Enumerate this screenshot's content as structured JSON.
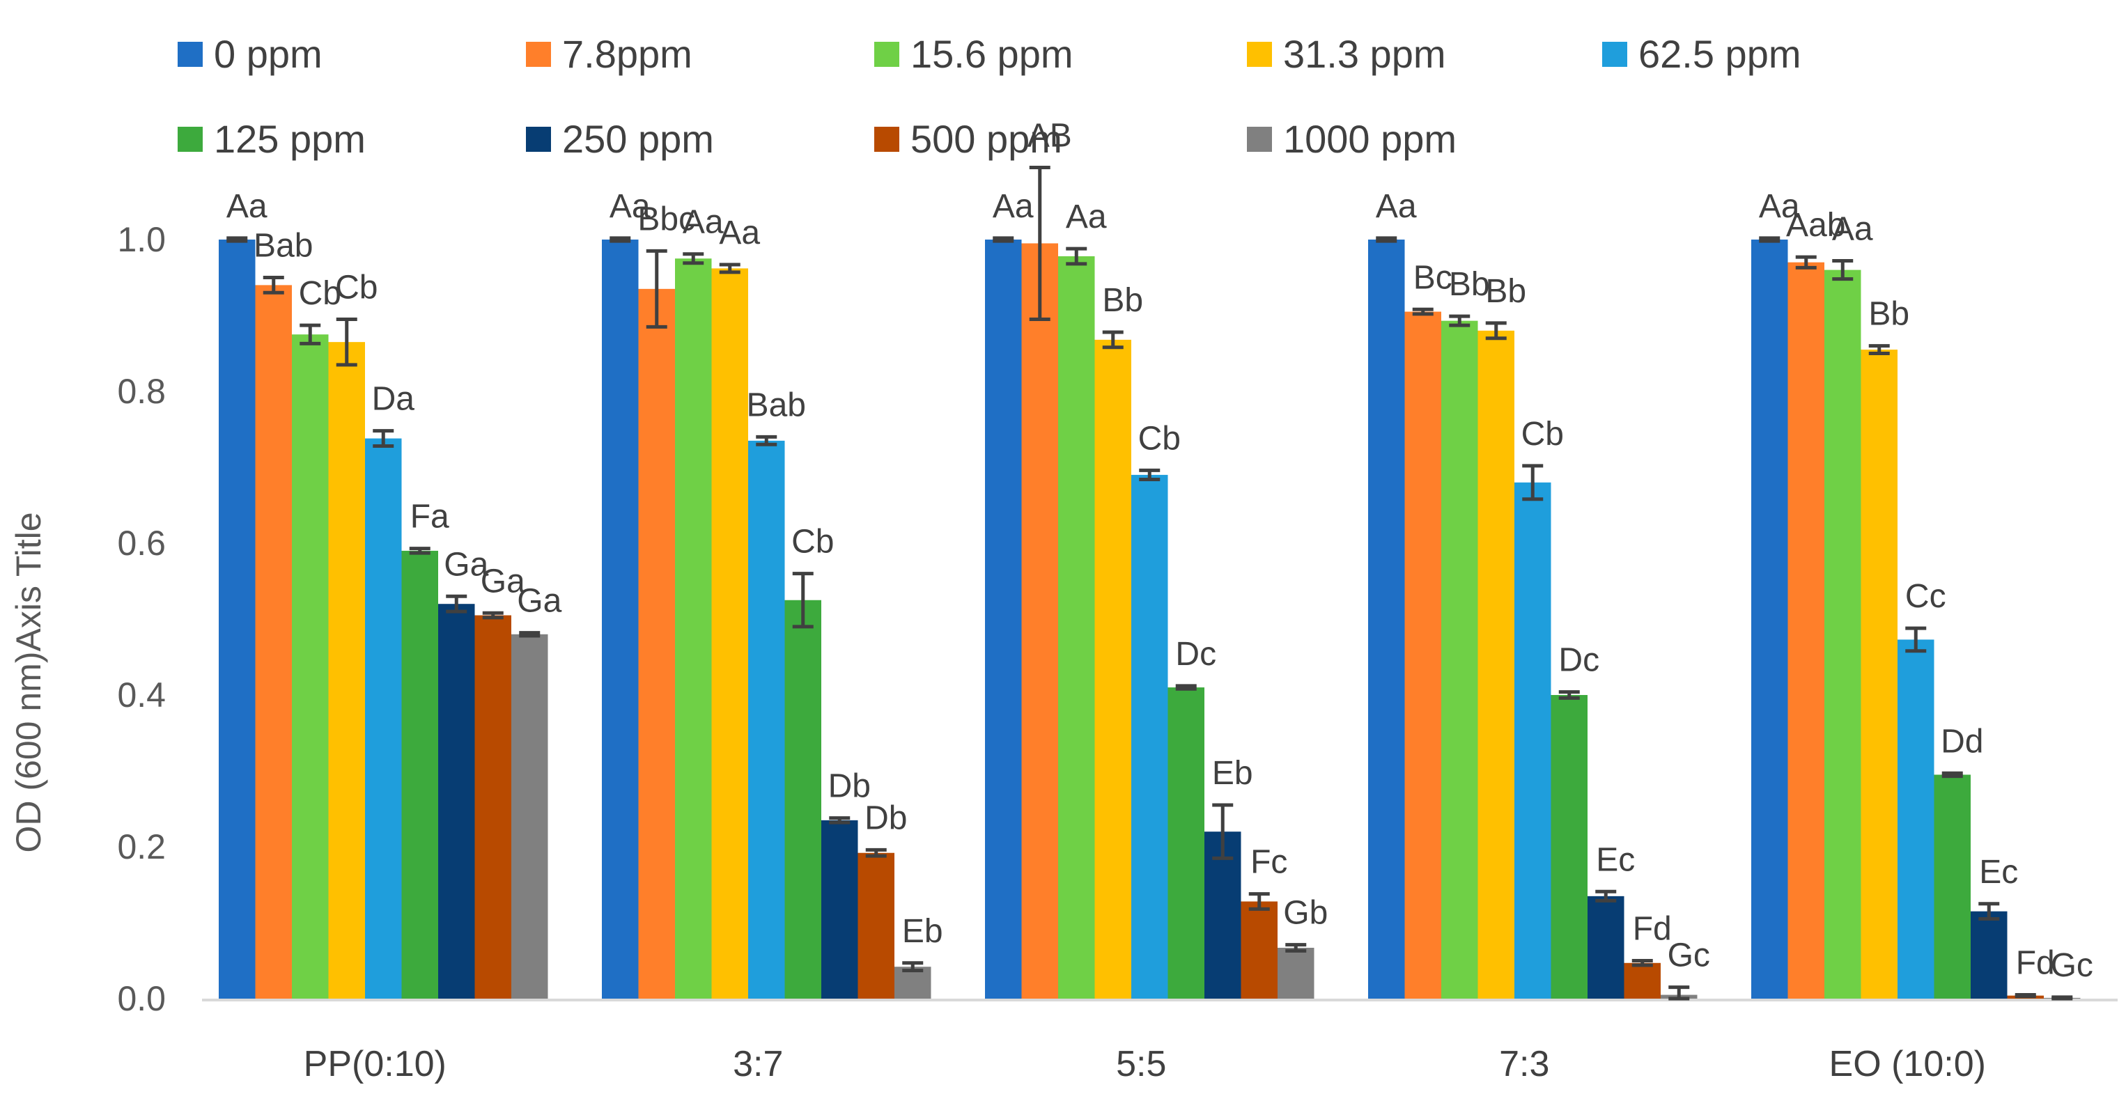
{
  "chart_data": {
    "type": "bar",
    "title": "",
    "xlabel": "",
    "ylabel": "OD (600 nm)Axis Title",
    "ylim": [
      0,
      1.0
    ],
    "yticks": [
      "0.0",
      "0.2",
      "0.4",
      "0.6",
      "0.8",
      "1.0"
    ],
    "grid": false,
    "legend_position": "top",
    "categories": [
      "PP(0:10)",
      "3:7",
      "5:5",
      "7:3",
      "EO (10:0)"
    ],
    "series": [
      {
        "name": "0 ppm",
        "color": "#1F6FC5",
        "values": [
          1.0,
          1.0,
          1.0,
          1.0,
          1.0
        ],
        "errors": [
          0.002,
          0.002,
          0.002,
          0.002,
          0.002
        ],
        "labels": [
          "Aa",
          "Aa",
          "Aa",
          "Aa",
          "Aa"
        ]
      },
      {
        "name": "7.8ppm",
        "color": "#FF7F2A",
        "values": [
          0.94,
          0.935,
          0.995,
          0.905,
          0.97
        ],
        "errors": [
          0.01,
          0.05,
          0.1,
          0.003,
          0.007
        ],
        "labels": [
          "Bab",
          "Bbc",
          "AB",
          "Bc",
          "Aab"
        ]
      },
      {
        "name": "15.6 ppm",
        "color": "#6FD046",
        "values": [
          0.875,
          0.975,
          0.978,
          0.893,
          0.96
        ],
        "errors": [
          0.012,
          0.006,
          0.01,
          0.006,
          0.012
        ],
        "labels": [
          "Cb",
          "Aa",
          "Aa",
          "Bb",
          "Aa"
        ]
      },
      {
        "name": "31.3 ppm",
        "color": "#FFC000",
        "values": [
          0.865,
          0.962,
          0.868,
          0.88,
          0.855
        ],
        "errors": [
          0.03,
          0.005,
          0.01,
          0.01,
          0.005
        ],
        "labels": [
          "Cb",
          "Aa",
          "Bb",
          "Bb",
          "Bb"
        ]
      },
      {
        "name": "62.5 ppm",
        "color": "#1F9EDC",
        "values": [
          0.738,
          0.735,
          0.69,
          0.68,
          0.473
        ],
        "errors": [
          0.01,
          0.005,
          0.006,
          0.022,
          0.015
        ],
        "labels": [
          "Da",
          "Bab",
          "Cb",
          "Cb",
          "Cc"
        ]
      },
      {
        "name": "125 ppm",
        "color": "#3DAA3D",
        "values": [
          0.59,
          0.525,
          0.41,
          0.4,
          0.295
        ],
        "errors": [
          0.003,
          0.035,
          0.002,
          0.004,
          0.002
        ],
        "labels": [
          "Fa",
          "Cb",
          "Dc",
          "Dc",
          "Dd"
        ]
      },
      {
        "name": "250 ppm",
        "color": "#073D73",
        "values": [
          0.52,
          0.235,
          0.22,
          0.135,
          0.115
        ],
        "errors": [
          0.01,
          0.003,
          0.035,
          0.006,
          0.01
        ],
        "labels": [
          "Ga",
          "Db",
          "Eb",
          "Ec",
          "Ec"
        ]
      },
      {
        "name": "500 ppm",
        "color": "#B84A00",
        "values": [
          0.505,
          0.192,
          0.128,
          0.047,
          0.004
        ],
        "errors": [
          0.003,
          0.004,
          0.01,
          0.003,
          0.001
        ],
        "labels": [
          "Ga",
          "Db",
          "Fc",
          "Fd",
          "Fd"
        ]
      },
      {
        "name": "1000 ppm",
        "color": "#808080",
        "values": [
          0.48,
          0.042,
          0.067,
          0.005,
          0.001
        ],
        "errors": [
          0.002,
          0.005,
          0.004,
          0.01,
          0.001
        ],
        "labels": [
          "Ga",
          "Eb",
          "Gb",
          "Gc",
          "Gc"
        ]
      }
    ]
  }
}
